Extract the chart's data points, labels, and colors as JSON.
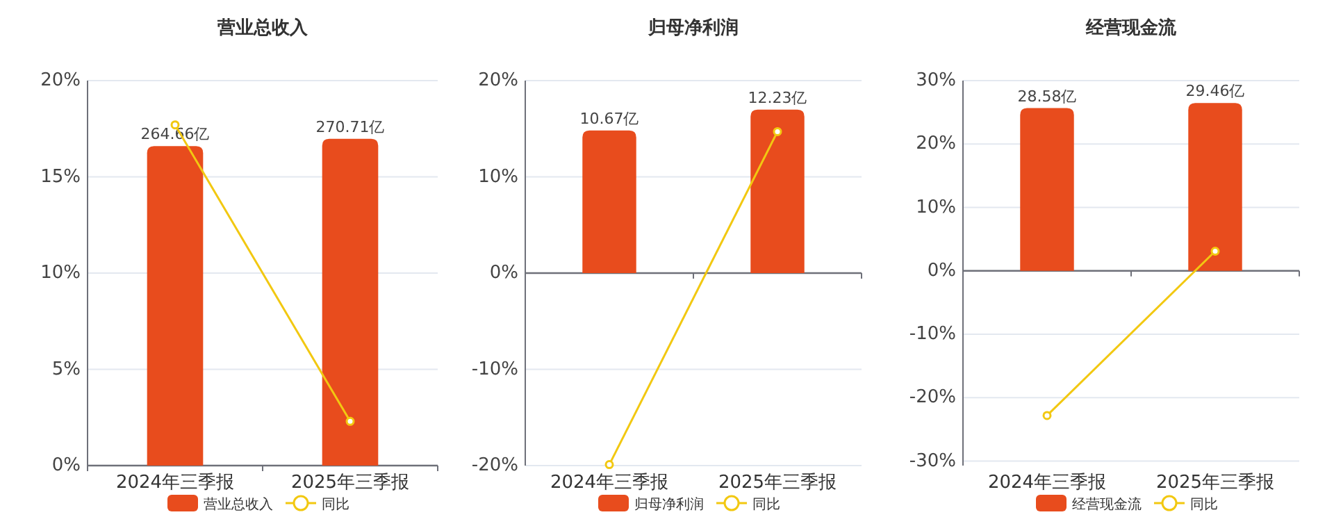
{
  "chart_data": [
    {
      "type": "bar",
      "title": "营业总收入",
      "categories": [
        "2024年三季报",
        "2025年三季报"
      ],
      "ylim": [
        0,
        20
      ],
      "yticks": [
        {
          "value": 0,
          "label": "0%"
        },
        {
          "value": 5,
          "label": "5%"
        },
        {
          "value": 10,
          "label": "10%"
        },
        {
          "value": 15,
          "label": "15%"
        },
        {
          "value": 20,
          "label": "20%"
        }
      ],
      "y2lim": [
        0,
        319
      ],
      "grid": "y",
      "legend": "bottom",
      "series": [
        {
          "name": "营业总收入",
          "axis": "y2",
          "color": "#e84c1d",
          "values": [
            264.66,
            270.71
          ],
          "value_labels": [
            "264.66亿",
            "270.71亿"
          ]
        },
        {
          "name": "同比",
          "type": "line",
          "color": "#f2c811",
          "marker": "circle",
          "values": [
            17.7,
            2.3
          ]
        }
      ]
    },
    {
      "type": "bar",
      "title": "归母净利润",
      "categories": [
        "2024年三季报",
        "2025年三季报"
      ],
      "ylim": [
        -20,
        20
      ],
      "yticks": [
        {
          "value": -20,
          "label": "-20%"
        },
        {
          "value": -10,
          "label": "-10%"
        },
        {
          "value": 0,
          "label": "0%"
        },
        {
          "value": 10,
          "label": "10%"
        },
        {
          "value": 20,
          "label": "20%"
        }
      ],
      "y2lim": [
        -14.4,
        14.4
      ],
      "grid": "y",
      "legend": "bottom",
      "series": [
        {
          "name": "归母净利润",
          "axis": "y2",
          "color": "#e84c1d",
          "values": [
            10.67,
            12.23
          ],
          "value_labels": [
            "10.67亿",
            "12.23亿"
          ]
        },
        {
          "name": "同比",
          "type": "line",
          "color": "#f2c811",
          "marker": "circle",
          "values": [
            -19.9,
            14.7
          ]
        }
      ]
    },
    {
      "type": "bar",
      "title": "经营现金流",
      "categories": [
        "2024年三季报",
        "2025年三季报"
      ],
      "ylim": [
        -30.7,
        30
      ],
      "yticks": [
        {
          "value": -30,
          "label": "-30%"
        },
        {
          "value": -20,
          "label": "-20%"
        },
        {
          "value": -10,
          "label": "-10%"
        },
        {
          "value": 0,
          "label": "0%"
        },
        {
          "value": 10,
          "label": "10%"
        },
        {
          "value": 20,
          "label": "20%"
        },
        {
          "value": 30,
          "label": "30%"
        }
      ],
      "y2lim": [
        -34.2,
        33.4
      ],
      "grid": "y",
      "legend": "bottom",
      "series": [
        {
          "name": "经营现金流",
          "axis": "y2",
          "color": "#e84c1d",
          "values": [
            28.58,
            29.46
          ],
          "value_labels": [
            "28.58亿",
            "29.46亿"
          ]
        },
        {
          "name": "同比",
          "type": "line",
          "color": "#f2c811",
          "marker": "circle",
          "values": [
            -22.8,
            3.1
          ]
        }
      ]
    }
  ]
}
